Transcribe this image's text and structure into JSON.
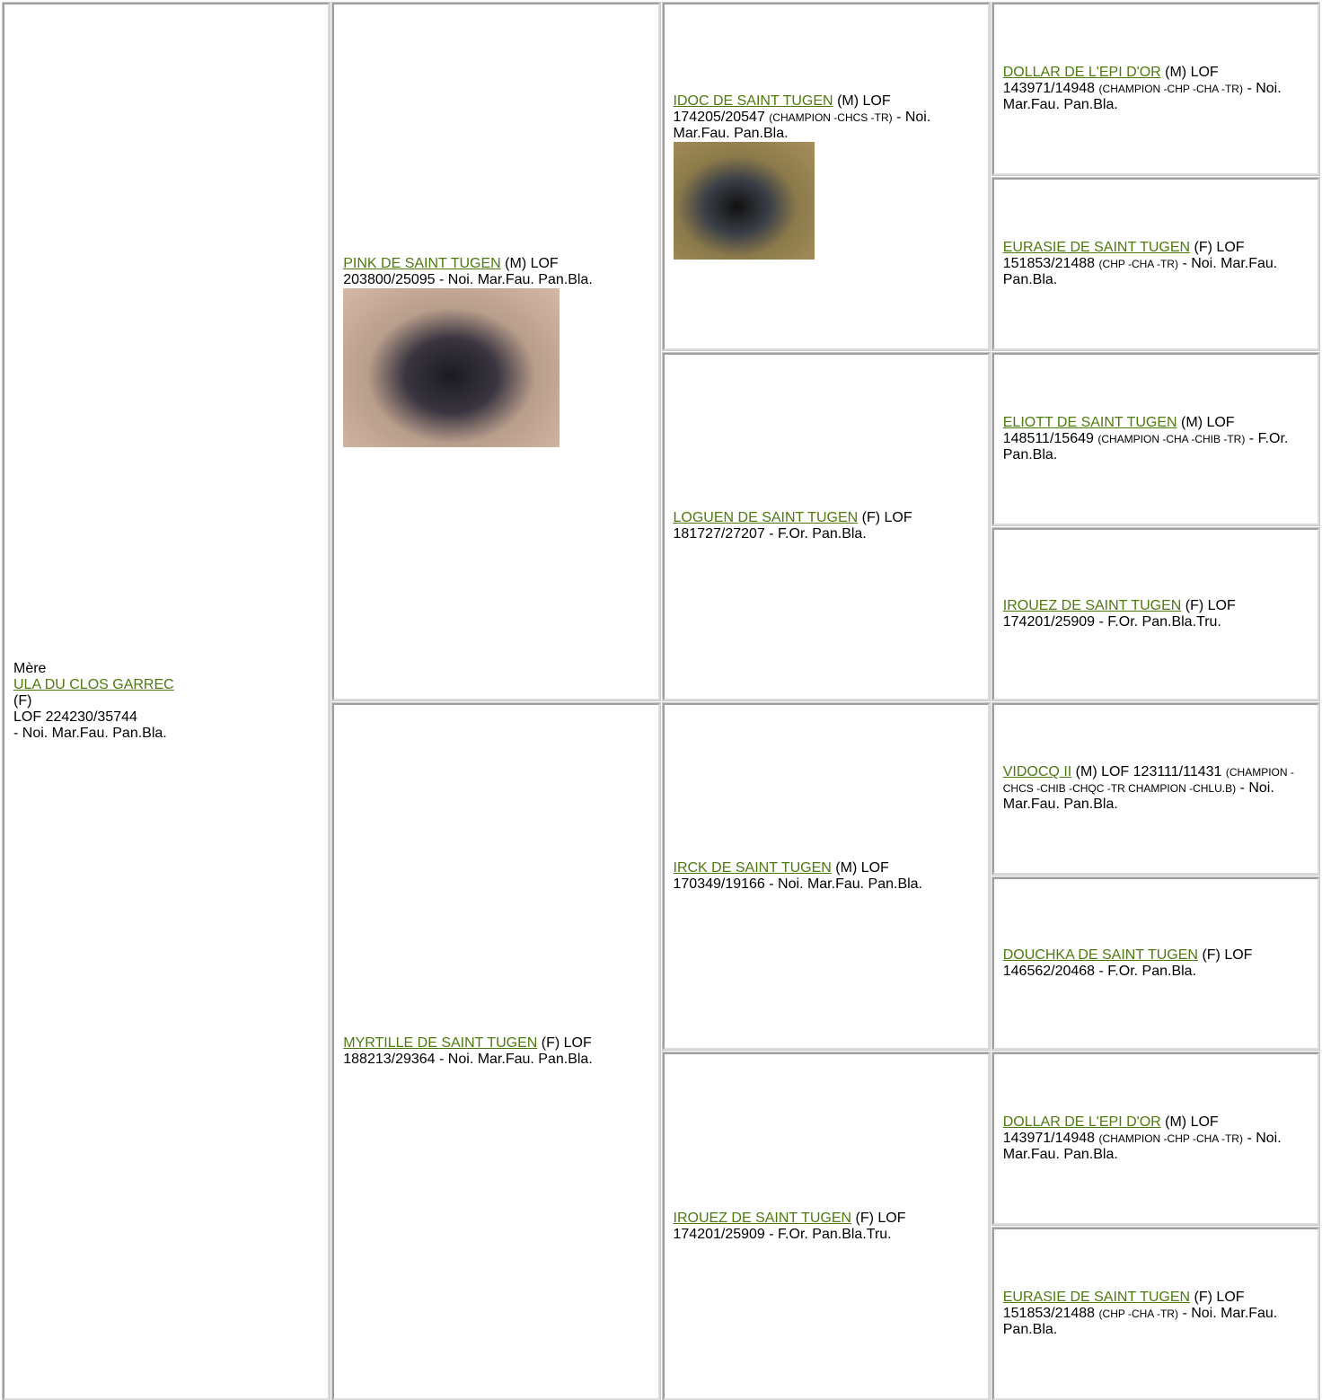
{
  "mother": {
    "label": "Mère",
    "name": "ULA DU CLOS GARREC",
    "sex": "(F)",
    "lof": "LOF 224230/35744",
    "color": "- Noi. Mar.Fau. Pan.Bla."
  },
  "generation_2": [
    {
      "name": "PINK DE SAINT TUGEN",
      "info": "(M) LOF 203800/25095",
      "color": "- Noi. Mar.Fau. Pan.Bla.",
      "photo": true
    },
    {
      "name": "MYRTILLE DE SAINT TUGEN",
      "info": "(F) LOF 188213/29364",
      "color": "- Noi. Mar.Fau. Pan.Bla."
    }
  ],
  "generation_3": [
    {
      "name": "IDOC DE SAINT TUGEN",
      "info": "(M) LOF 174205/20547",
      "titles": "(CHAMPION -CHCS -TR)",
      "color": "- Noi. Mar.Fau. Pan.Bla.",
      "photo": true
    },
    {
      "name": "LOGUEN DE SAINT TUGEN",
      "info": "(F) LOF 181727/27207",
      "color": "- F.Or. Pan.Bla."
    },
    {
      "name": "IRCK DE SAINT TUGEN",
      "info": "(M) LOF 170349/19166",
      "color": "- Noi. Mar.Fau. Pan.Bla."
    },
    {
      "name": "IROUEZ DE SAINT TUGEN",
      "info": "(F) LOF 174201/25909",
      "color": "- F.Or. Pan.Bla.Tru."
    }
  ],
  "generation_4": [
    {
      "name": "DOLLAR DE L'EPI D'OR",
      "info": "(M) LOF 143971/14948",
      "titles": "(CHAMPION -CHP -CHA -TR)",
      "color": "- Noi. Mar.Fau. Pan.Bla."
    },
    {
      "name": "EURASIE DE SAINT TUGEN",
      "info": "(F) LOF 151853/21488",
      "titles": "(CHP -CHA -TR)",
      "color": "- Noi. Mar.Fau. Pan.Bla."
    },
    {
      "name": "ELIOTT DE SAINT TUGEN",
      "info": "(M) LOF 148511/15649",
      "titles": "(CHAMPION -CHA -CHIB -TR)",
      "color": "- F.Or. Pan.Bla."
    },
    {
      "name": "IROUEZ DE SAINT TUGEN",
      "info": "(F) LOF 174201/25909",
      "color": "- F.Or. Pan.Bla.Tru."
    },
    {
      "name": "VIDOCQ II",
      "info": "(M) LOF 123111/11431",
      "titles": "(CHAMPION -CHCS -CHIB -CHQC -TR CHAMPION -CHLU.B)",
      "color": "- Noi. Mar.Fau. Pan.Bla."
    },
    {
      "name": "DOUCHKA DE SAINT TUGEN",
      "info": "(F) LOF 146562/20468",
      "color": "- F.Or. Pan.Bla."
    },
    {
      "name": "DOLLAR DE L'EPI D'OR",
      "info": "(M) LOF 143971/14948",
      "titles": "(CHAMPION -CHP -CHA -TR)",
      "color": "- Noi. Mar.Fau. Pan.Bla."
    },
    {
      "name": "EURASIE DE SAINT TUGEN",
      "info": "(F) LOF 151853/21488",
      "titles": "(CHP -CHA -TR)",
      "color": "- Noi. Mar.Fau. Pan.Bla."
    }
  ]
}
